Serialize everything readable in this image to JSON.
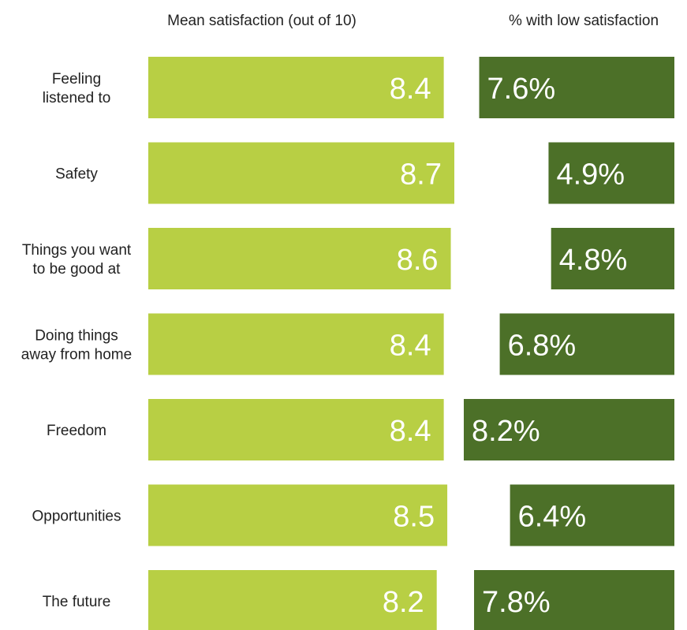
{
  "chart_data": [
    {
      "type": "bar",
      "orientation": "horizontal",
      "title": "Mean satisfaction (out of 10)",
      "categories": [
        [
          "Feeling",
          "listened to"
        ],
        [
          "Safety"
        ],
        [
          "Things you want",
          "to be good at"
        ],
        [
          "Doing things",
          "away from home"
        ],
        [
          "Freedom"
        ],
        [
          "Opportunities"
        ],
        [
          "The future"
        ]
      ],
      "values": [
        8.4,
        8.7,
        8.6,
        8.4,
        8.4,
        8.5,
        8.2
      ],
      "value_labels": [
        "8.4",
        "8.7",
        "8.6",
        "8.4",
        "8.4",
        "8.5",
        "8.2"
      ],
      "color": "#b8cf44",
      "bar_direction": "left-to-right",
      "label_position": "inside-end",
      "axis_visible": false,
      "grid": false
    },
    {
      "type": "bar",
      "orientation": "horizontal",
      "title": "% with low satisfaction",
      "categories": [
        [
          "Feeling",
          "listened to"
        ],
        [
          "Safety"
        ],
        [
          "Things you want",
          "to be good at"
        ],
        [
          "Doing things",
          "away from home"
        ],
        [
          "Freedom"
        ],
        [
          "Opportunities"
        ],
        [
          "The future"
        ]
      ],
      "values": [
        7.6,
        4.9,
        4.8,
        6.8,
        8.2,
        6.4,
        7.8
      ],
      "value_labels": [
        "7.6%",
        "4.9%",
        "4.8%",
        "6.8%",
        "8.2%",
        "6.4%",
        "7.8%"
      ],
      "color": "#4c7028",
      "bar_direction": "right-to-left",
      "label_position": "inside-start",
      "axis_visible": false,
      "grid": false
    }
  ]
}
